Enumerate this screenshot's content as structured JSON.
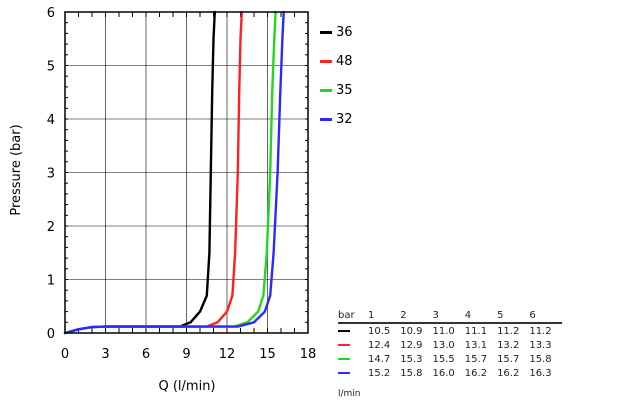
{
  "chart_data": {
    "type": "line",
    "xlabel": "Q (l/min)",
    "ylabel": "Pressure (bar)",
    "xlim": [
      0,
      18
    ],
    "ylim": [
      0,
      6
    ],
    "xticks": [
      0,
      3,
      6,
      9,
      12,
      15,
      18
    ],
    "yticks": [
      0,
      1,
      2,
      3,
      4,
      5,
      6
    ],
    "grid": true,
    "legend_position": "right-top",
    "series": [
      {
        "name": "36",
        "color": "#000000",
        "x": [
          0,
          1,
          2,
          3,
          6,
          8.5,
          9.3,
          10.0,
          10.5,
          10.7,
          10.8,
          10.9,
          11.0,
          11.1
        ],
        "y": [
          0,
          0.07,
          0.11,
          0.12,
          0.12,
          0.12,
          0.2,
          0.4,
          0.7,
          1.5,
          3.0,
          4.5,
          5.5,
          6.0
        ]
      },
      {
        "name": "48",
        "color": "#ff2020",
        "x": [
          0,
          1,
          2,
          3,
          6,
          10.5,
          11.3,
          12.0,
          12.4,
          12.6,
          12.8,
          12.9,
          13.0,
          13.1
        ],
        "y": [
          0,
          0.07,
          0.11,
          0.12,
          0.12,
          0.12,
          0.2,
          0.4,
          0.7,
          1.5,
          3.0,
          4.5,
          5.5,
          6.0
        ]
      },
      {
        "name": "35",
        "color": "#22d622",
        "x": [
          0,
          1,
          2,
          3,
          6,
          12.5,
          13.5,
          14.3,
          14.7,
          14.95,
          15.2,
          15.35,
          15.5,
          15.6
        ],
        "y": [
          0,
          0.07,
          0.11,
          0.12,
          0.12,
          0.12,
          0.2,
          0.4,
          0.7,
          1.5,
          3.0,
          4.5,
          5.5,
          6.0
        ]
      },
      {
        "name": "32",
        "color": "#2a2aff",
        "x": [
          0,
          1,
          2,
          3,
          6,
          12.8,
          14.0,
          14.8,
          15.2,
          15.45,
          15.75,
          15.95,
          16.1,
          16.2
        ],
        "y": [
          0,
          0.07,
          0.11,
          0.12,
          0.12,
          0.12,
          0.2,
          0.4,
          0.7,
          1.5,
          3.0,
          4.5,
          5.5,
          6.0
        ]
      }
    ],
    "table": {
      "header": [
        "bar",
        "1",
        "2",
        "3",
        "4",
        "5",
        "6"
      ],
      "rows": [
        {
          "color": "#000000",
          "values": [
            "10.5",
            "10.9",
            "11.0",
            "11.1",
            "11.2",
            "11.2"
          ]
        },
        {
          "color": "#ff2020",
          "values": [
            "12.4",
            "12.9",
            "13.0",
            "13.1",
            "13.2",
            "13.3"
          ]
        },
        {
          "color": "#22d622",
          "values": [
            "14.7",
            "15.3",
            "15.5",
            "15.7",
            "15.7",
            "15.8"
          ]
        },
        {
          "color": "#2a2aff",
          "values": [
            "15.2",
            "15.8",
            "16.0",
            "16.2",
            "16.2",
            "16.3"
          ]
        }
      ],
      "unit": "l/min"
    }
  }
}
